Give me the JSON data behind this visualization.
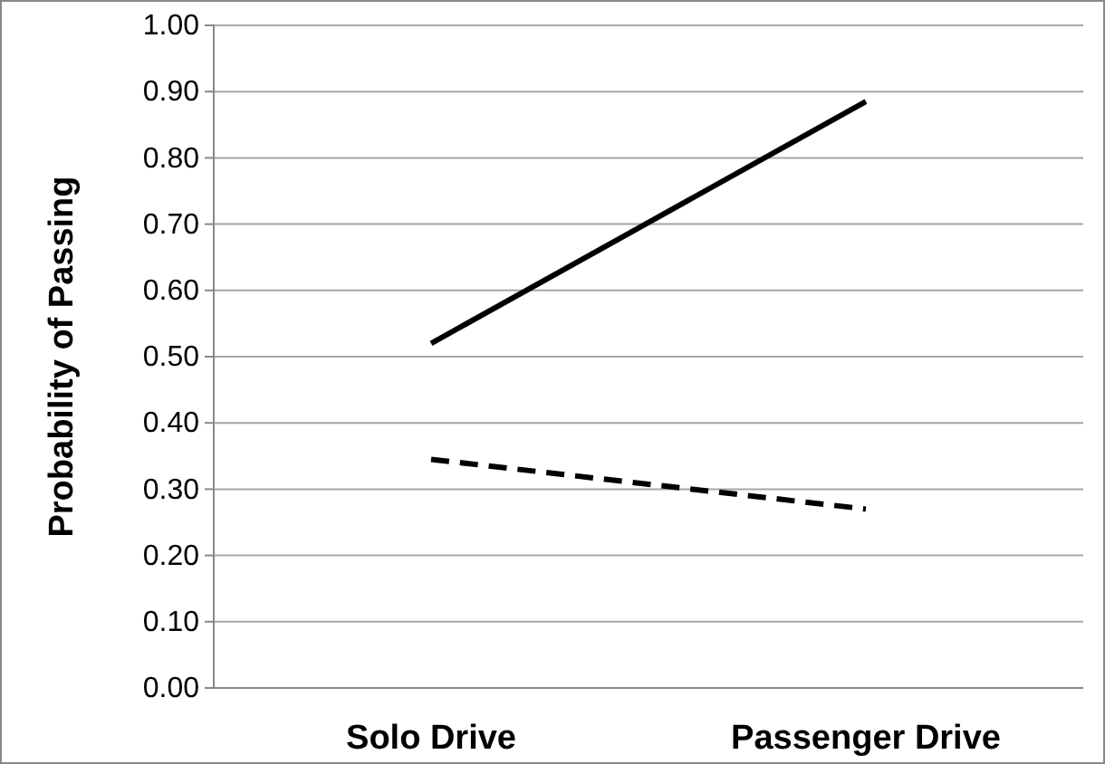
{
  "chart_data": {
    "type": "line",
    "ylabel": "Probability of Passing",
    "categories": [
      "Solo Drive",
      "Passenger Drive"
    ],
    "series": [
      {
        "color": "#000000",
        "values": [
          0.52,
          0.885
        ],
        "line_style": "solid"
      },
      {
        "color": "#000000",
        "values": [
          0.345,
          0.27
        ],
        "line_style": "dashed"
      }
    ],
    "ylim": [
      0,
      1
    ],
    "yticks": [
      {
        "value": 0,
        "label": "0.00"
      },
      {
        "value": 0.1,
        "label": "0.10"
      },
      {
        "value": 0.2,
        "label": "0.20"
      },
      {
        "value": 0.3,
        "label": "0.30"
      },
      {
        "value": 0.4,
        "label": "0.40"
      },
      {
        "value": 0.5,
        "label": "0.50"
      },
      {
        "value": 0.6,
        "label": "0.60"
      },
      {
        "value": 0.7,
        "label": "0.70"
      },
      {
        "value": 0.8,
        "label": "0.80"
      },
      {
        "value": 0.9,
        "label": "0.90"
      },
      {
        "value": 1,
        "label": "1.00"
      }
    ],
    "grid": "y",
    "marker": "none"
  }
}
